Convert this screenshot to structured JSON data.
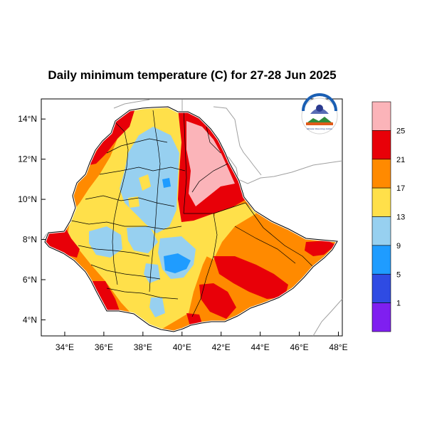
{
  "title": "Daily minimum temperature (C) for 27-28 Jun 2025",
  "map": {
    "x_ticks": [
      "34°E",
      "36°E",
      "38°E",
      "40°E",
      "42°E",
      "44°E",
      "46°E",
      "48°E"
    ],
    "y_ticks": [
      "14°N",
      "12°N",
      "10°N",
      "8°N",
      "6°N",
      "4°N"
    ],
    "lon_range": [
      32.8,
      48.2
    ],
    "lat_range": [
      3.2,
      15.0
    ],
    "tick_lons": [
      34,
      36,
      38,
      40,
      42,
      44,
      46,
      48
    ],
    "tick_lats": [
      14,
      12,
      10,
      8,
      6,
      4
    ]
  },
  "logo": {
    "arc_text": "የኢትዮጵያ ሚቲዎሮሎጂ ኢንስቲትዩት",
    "bottom_text": "Ethiopian Meteorology Institute"
  },
  "legend": {
    "labels": [
      "25",
      "21",
      "17",
      "13",
      "9",
      "5",
      "1"
    ],
    "bins": [
      {
        "color": "#7f1ff0",
        "range": "<1"
      },
      {
        "color": "#2f4be3",
        "range": "1-5"
      },
      {
        "color": "#1f9cff",
        "range": "5-9"
      },
      {
        "color": "#97d0f0",
        "range": "9-13"
      },
      {
        "color": "#ffe04a",
        "range": "13-17"
      },
      {
        "color": "#ff8a00",
        "range": "17-21"
      },
      {
        "color": "#e80008",
        "range": "21-25"
      },
      {
        "color": "#fbb4b9",
        "range": ">25"
      }
    ]
  }
}
